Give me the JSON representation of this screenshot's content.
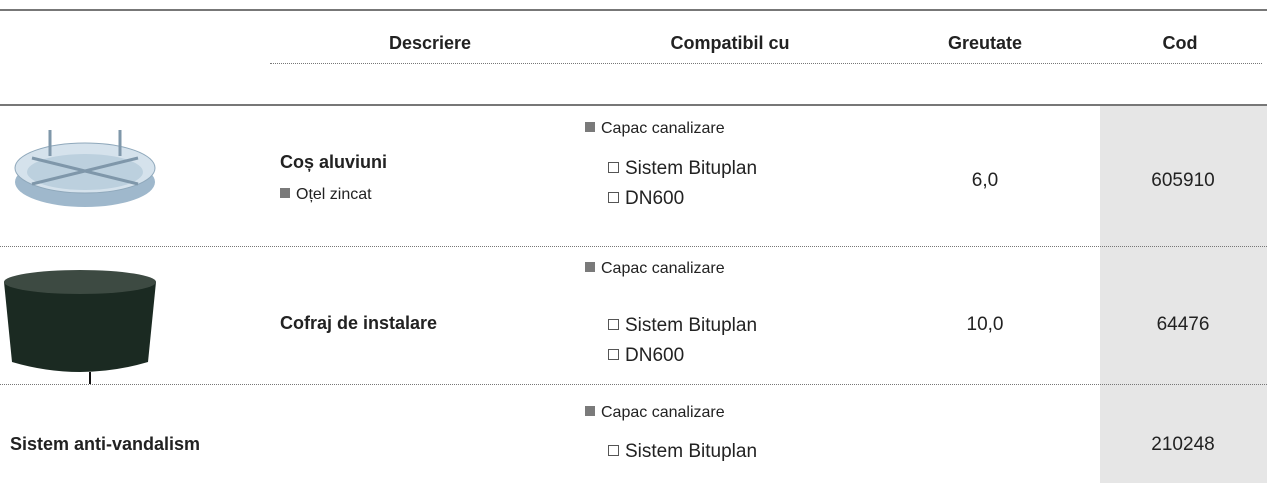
{
  "table": {
    "headers": [
      "Descriere",
      "Compatibil cu",
      "Greutate",
      "Cod"
    ],
    "rows": [
      {
        "description": "Coș aluviuni",
        "material": "Oțel zincat",
        "compatible": "Capac canalizare",
        "systems": [
          "Sistem Bituplan",
          "DN600"
        ],
        "weight": "6,0",
        "code": "605910"
      },
      {
        "description": "Cofraj de instalare",
        "compatible": "Capac canalizare",
        "systems": [
          "Sistem Bituplan",
          "DN600"
        ],
        "weight": "10,0",
        "code": "64476"
      },
      {
        "description": "Sistem anti-vandalism",
        "compatible": "Capac canalizare",
        "systems": [
          "Sistem Bituplan"
        ],
        "code": "210248"
      }
    ]
  }
}
